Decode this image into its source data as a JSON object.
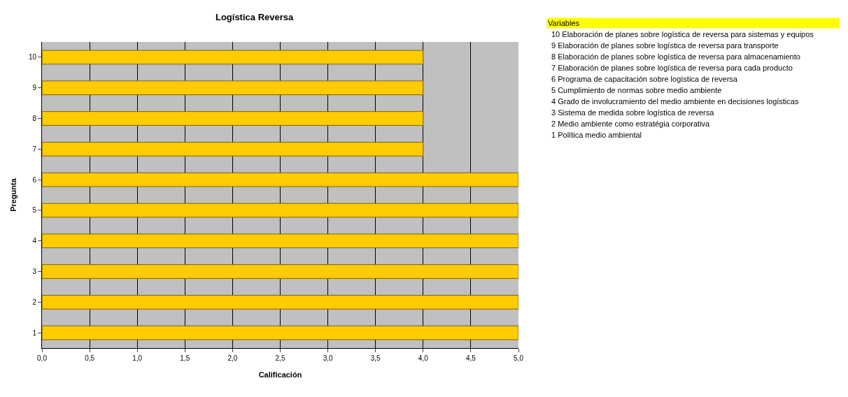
{
  "chart_data": {
    "type": "bar",
    "orientation": "horizontal",
    "title": "Logística Reversa",
    "xlabel": "Calificación",
    "ylabel": "Pregunta",
    "categories": [
      "10",
      "9",
      "8",
      "7",
      "6",
      "5",
      "4",
      "3",
      "2",
      "1"
    ],
    "values": [
      4,
      4,
      4,
      4,
      5,
      5,
      5,
      5,
      5,
      5
    ],
    "color": "#ffcc00",
    "xlim": [
      0,
      5
    ],
    "xticks": [
      {
        "value": 0,
        "label": "0,0"
      },
      {
        "value": 0.5,
        "label": "0,5"
      },
      {
        "value": 1,
        "label": "1,0"
      },
      {
        "value": 1.5,
        "label": "1,5"
      },
      {
        "value": 2,
        "label": "2,0"
      },
      {
        "value": 2.5,
        "label": "2,5"
      },
      {
        "value": 3,
        "label": "3,0"
      },
      {
        "value": 3.5,
        "label": "3,5"
      },
      {
        "value": 4,
        "label": "4,0"
      },
      {
        "value": 4.5,
        "label": "4,5"
      },
      {
        "value": 5,
        "label": "5,0"
      }
    ],
    "grid": "x",
    "legend": false,
    "annotations": [
      "Variables",
      "10 Elaboración de planes sobre logística de reversa para sistemas y equipos",
      "9 Elaboración de planes sobre logística de reversa para transporte",
      "8 Elaboración de planes sobre logística de reversa para almacenamiento",
      "7 Elaboración de planes sobre logística de reversa para cada producto",
      "6 Programa de capacitación sobre logística de reversa",
      "5 Cumplimiento de normas sobre medio ambiente",
      "4 Grado de involucramiento del medio ambiente en decisiones logísticas",
      "3 Sistema de medida sobre logística de reversa",
      "2 Medio ambiente como estratégia corporativa",
      "1 Política medio ambiental"
    ]
  }
}
